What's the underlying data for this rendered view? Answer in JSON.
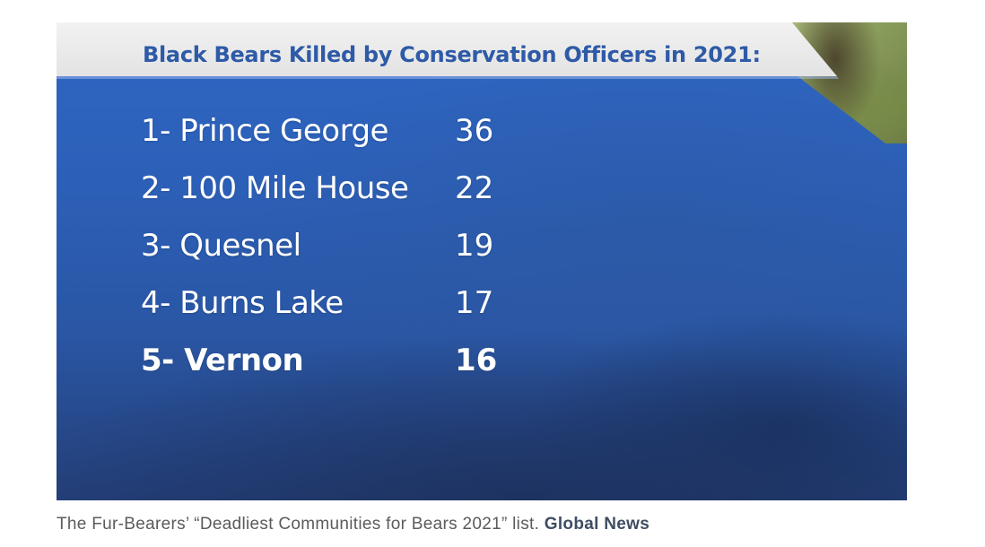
{
  "graphic": {
    "title": "Black Bears Killed by Conservation Officers in 2021:",
    "rows": [
      {
        "label": "1- Prince George",
        "value": "36"
      },
      {
        "label": "2- 100 Mile House",
        "value": "22"
      },
      {
        "label": "3- Quesnel",
        "value": "19"
      },
      {
        "label": "4- Burns Lake",
        "value": "17"
      },
      {
        "label": "5- Vernon",
        "value": "16"
      }
    ],
    "highlighted_row": 5,
    "colors": {
      "panel_blue": "#2c5fb7",
      "title_band": "#ececec",
      "title_text": "#2e5aa7",
      "row_text": "#ffffff"
    }
  },
  "caption": {
    "text": "The Fur-Bearers’ “Deadliest Communities for Bears 2021” list.",
    "credit": "Global News"
  }
}
